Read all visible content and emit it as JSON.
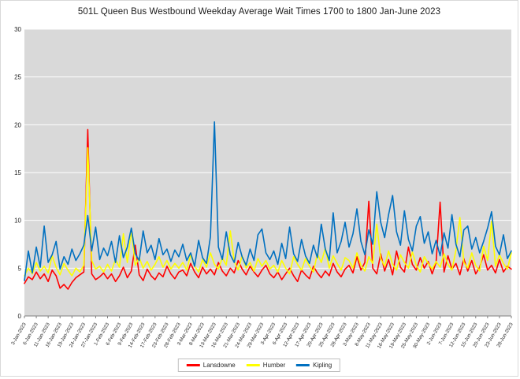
{
  "chart_data": {
    "type": "line",
    "title": "501L Queen Bus Westbound Weekday Average Wait Times 1700 to 1800 Jan-June 2023",
    "ylim": [
      0,
      30
    ],
    "yticks": [
      0,
      5,
      10,
      15,
      20,
      25,
      30
    ],
    "x_tick_every": 3,
    "grid": true,
    "legend_position": "bottom",
    "plot_bg": "#d9d9d9",
    "gridline_color": "#ffffff",
    "x": [
      "3-Jan-2023",
      "4-Jan-2023",
      "5-Jan-2023",
      "6-Jan-2023",
      "9-Jan-2023",
      "10-Jan-2023",
      "11-Jan-2023",
      "12-Jan-2023",
      "13-Jan-2023",
      "16-Jan-2023",
      "17-Jan-2023",
      "18-Jan-2023",
      "19-Jan-2023",
      "20-Jan-2023",
      "23-Jan-2023",
      "24-Jan-2023",
      "25-Jan-2023",
      "26-Jan-2023",
      "27-Jan-2023",
      "30-Jan-2023",
      "31-Jan-2023",
      "1-Feb-2023",
      "2-Feb-2023",
      "3-Feb-2023",
      "6-Feb-2023",
      "7-Feb-2023",
      "8-Feb-2023",
      "9-Feb-2023",
      "10-Feb-2023",
      "13-Feb-2023",
      "14-Feb-2023",
      "15-Feb-2023",
      "16-Feb-2023",
      "17-Feb-2023",
      "21-Feb-2023",
      "22-Feb-2023",
      "23-Feb-2023",
      "24-Feb-2023",
      "27-Feb-2023",
      "28-Feb-2023",
      "1-Mar-2023",
      "2-Mar-2023",
      "3-Mar-2023",
      "6-Mar-2023",
      "7-Mar-2023",
      "8-Mar-2023",
      "9-Mar-2023",
      "10-Mar-2023",
      "13-Mar-2023",
      "14-Mar-2023",
      "15-Mar-2023",
      "16-Mar-2023",
      "17-Mar-2023",
      "20-Mar-2023",
      "21-Mar-2023",
      "22-Mar-2023",
      "23-Mar-2023",
      "24-Mar-2023",
      "27-Mar-2023",
      "28-Mar-2023",
      "29-Mar-2023",
      "30-Mar-2023",
      "31-Mar-2023",
      "3-Apr-2023",
      "4-Apr-2023",
      "5-Apr-2023",
      "6-Apr-2023",
      "10-Apr-2023",
      "11-Apr-2023",
      "12-Apr-2023",
      "13-Apr-2023",
      "14-Apr-2023",
      "17-Apr-2023",
      "18-Apr-2023",
      "19-Apr-2023",
      "20-Apr-2023",
      "21-Apr-2023",
      "24-Apr-2023",
      "25-Apr-2023",
      "26-Apr-2023",
      "27-Apr-2023",
      "28-Apr-2023",
      "1-May-2023",
      "2-May-2023",
      "3-May-2023",
      "4-May-2023",
      "5-May-2023",
      "8-May-2023",
      "9-May-2023",
      "10-May-2023",
      "11-May-2023",
      "12-May-2023",
      "15-May-2023",
      "16-May-2023",
      "17-May-2023",
      "18-May-2023",
      "19-May-2023",
      "23-May-2023",
      "24-May-2023",
      "25-May-2023",
      "26-May-2023",
      "29-May-2023",
      "30-May-2023",
      "31-May-2023",
      "1-Jun-2023",
      "2-Jun-2023",
      "5-Jun-2023",
      "6-Jun-2023",
      "7-Jun-2023",
      "8-Jun-2023",
      "9-Jun-2023",
      "12-Jun-2023",
      "13-Jun-2023",
      "14-Jun-2023",
      "15-Jun-2023",
      "16-Jun-2023",
      "19-Jun-2023",
      "20-Jun-2023",
      "21-Jun-2023",
      "22-Jun-2023",
      "23-Jun-2023",
      "26-Jun-2023",
      "27-Jun-2023",
      "28-Jun-2023"
    ],
    "series": [
      {
        "name": "Lansdowne",
        "color": "#ff0000",
        "values": [
          3.4,
          4.1,
          3.8,
          4.6,
          3.9,
          4.4,
          3.6,
          4.8,
          4.2,
          2.9,
          3.3,
          2.8,
          3.5,
          4.0,
          4.3,
          4.6,
          19.5,
          4.4,
          3.8,
          4.1,
          4.5,
          3.9,
          4.4,
          3.6,
          4.2,
          5.1,
          4.0,
          4.7,
          7.4,
          4.3,
          3.7,
          4.9,
          4.2,
          3.8,
          4.5,
          4.1,
          5.2,
          4.4,
          3.9,
          4.6,
          4.8,
          4.2,
          5.5,
          4.6,
          4.0,
          5.1,
          4.4,
          4.9,
          4.3,
          5.6,
          4.7,
          4.2,
          5.0,
          4.5,
          5.8,
          4.9,
          4.3,
          5.2,
          4.6,
          4.1,
          4.8,
          5.3,
          4.4,
          4.0,
          4.6,
          3.8,
          4.4,
          5.0,
          4.2,
          3.6,
          4.8,
          4.3,
          3.9,
          5.2,
          4.5,
          4.0,
          4.7,
          4.2,
          5.5,
          4.6,
          4.1,
          4.9,
          5.3,
          4.5,
          6.2,
          4.8,
          5.6,
          12.0,
          5.0,
          4.4,
          6.5,
          4.7,
          5.9,
          4.3,
          6.8,
          5.1,
          4.6,
          7.2,
          5.4,
          4.8,
          6.1,
          5.0,
          5.7,
          4.4,
          5.6,
          11.9,
          4.6,
          6.3,
          4.9,
          5.5,
          4.3,
          6.0,
          4.7,
          5.8,
          4.4,
          5.1,
          6.4,
          4.8,
          5.3,
          4.5,
          5.9,
          4.6,
          5.2,
          4.9
        ]
      },
      {
        "name": "Humber",
        "color": "#ffff00",
        "values": [
          4.2,
          5.0,
          4.4,
          5.6,
          4.7,
          5.2,
          4.5,
          6.3,
          5.1,
          4.3,
          5.5,
          4.8,
          4.2,
          5.0,
          4.6,
          5.3,
          17.6,
          5.8,
          4.9,
          5.2,
          4.6,
          5.4,
          4.7,
          5.9,
          5.1,
          8.6,
          5.6,
          9.0,
          5.3,
          6.1,
          5.0,
          5.7,
          4.8,
          5.4,
          6.2,
          5.1,
          5.8,
          4.9,
          5.5,
          5.0,
          5.6,
          4.8,
          6.4,
          5.2,
          4.6,
          5.9,
          5.1,
          6.6,
          5.4,
          4.9,
          6.1,
          5.3,
          8.9,
          5.7,
          4.8,
          6.3,
          5.0,
          5.6,
          4.7,
          6.0,
          5.2,
          5.8,
          4.9,
          5.3,
          4.6,
          5.8,
          5.0,
          4.4,
          6.2,
          5.4,
          4.8,
          6.0,
          5.2,
          4.6,
          6.5,
          5.6,
          7.1,
          5.0,
          6.3,
          5.5,
          4.8,
          6.1,
          5.8,
          5.0,
          6.6,
          5.3,
          4.7,
          6.2,
          5.5,
          9.6,
          6.0,
          5.2,
          6.8,
          5.4,
          4.8,
          6.4,
          5.6,
          5.0,
          6.7,
          5.3,
          4.6,
          6.2,
          5.5,
          4.9,
          5.7,
          5.1,
          6.5,
          5.4,
          4.8,
          6.9,
          10.3,
          5.6,
          5.0,
          6.6,
          5.3,
          4.7,
          7.3,
          5.8,
          9.9,
          5.2,
          6.4,
          5.5,
          4.9,
          6.6
        ]
      },
      {
        "name": "Kipling",
        "color": "#0070c0",
        "values": [
          3.7,
          6.8,
          4.5,
          7.2,
          5.1,
          9.4,
          5.6,
          6.4,
          7.8,
          4.9,
          6.2,
          5.4,
          7.0,
          5.8,
          6.5,
          7.4,
          10.5,
          6.8,
          9.3,
          5.9,
          7.1,
          6.3,
          7.8,
          5.6,
          8.4,
          6.1,
          7.2,
          9.2,
          6.5,
          5.8,
          8.9,
          6.6,
          7.4,
          5.9,
          8.1,
          6.4,
          7.0,
          5.7,
          6.9,
          6.2,
          7.5,
          5.8,
          6.6,
          5.2,
          7.9,
          6.1,
          5.5,
          8.3,
          20.3,
          7.2,
          5.9,
          8.8,
          6.4,
          5.6,
          7.7,
          6.2,
          5.3,
          7.0,
          5.8,
          8.5,
          9.1,
          6.6,
          5.9,
          6.8,
          5.4,
          7.6,
          6.0,
          9.3,
          6.5,
          5.7,
          8.0,
          6.3,
          5.5,
          7.4,
          6.1,
          9.6,
          7.0,
          5.8,
          10.8,
          6.6,
          7.8,
          9.8,
          7.2,
          8.6,
          11.2,
          7.8,
          6.4,
          9.0,
          7.5,
          13.0,
          9.8,
          8.2,
          10.6,
          12.6,
          8.8,
          7.4,
          11.0,
          8.0,
          6.8,
          9.4,
          10.4,
          7.6,
          8.8,
          6.5,
          7.9,
          6.3,
          8.7,
          7.1,
          10.6,
          7.5,
          6.2,
          9.0,
          9.4,
          7.0,
          8.2,
          6.6,
          7.8,
          9.2,
          10.9,
          7.3,
          6.4,
          8.5,
          6.0,
          6.8
        ]
      }
    ]
  }
}
